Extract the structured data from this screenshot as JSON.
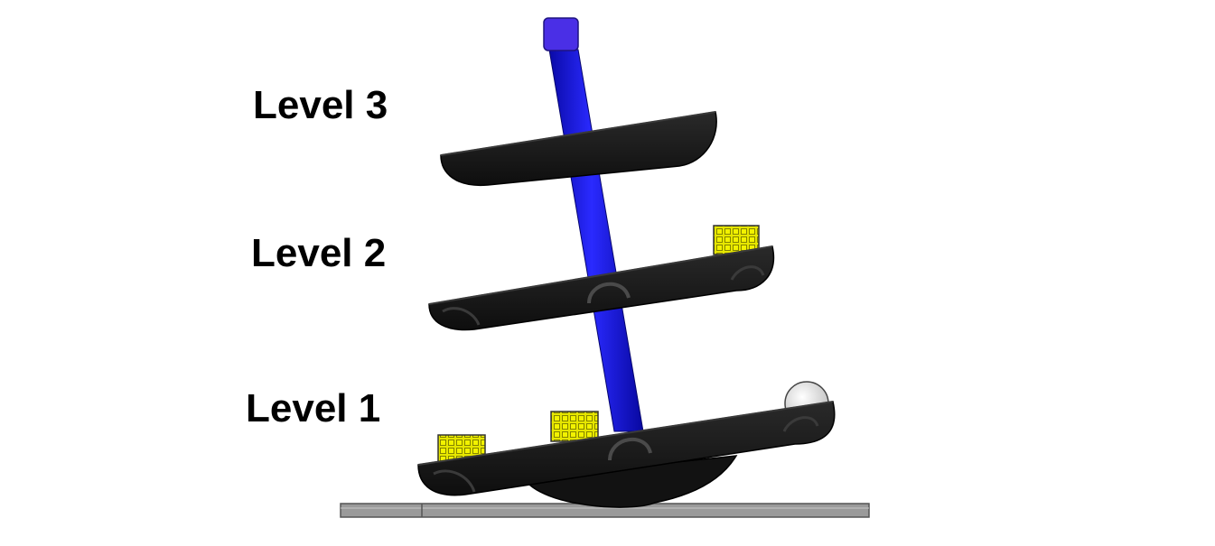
{
  "labels": {
    "level_3": "Level 3",
    "level_2": "Level 2",
    "level_1": "Level 1"
  },
  "colors": {
    "pole": "#1414d6",
    "pole_highlight": "#4b4bff",
    "pole_cap": "#4630e0",
    "tray": "#161616",
    "tray_rim": "#2e2e2e",
    "cube": "#e6e600",
    "ground": "#8c8c8c",
    "ball": "#e8e8e8"
  },
  "icons": {
    "pole": "central-pole",
    "tray": "curved-tray",
    "cube": "yellow-cube-block",
    "ball": "white-ball",
    "ground": "ground-plate"
  }
}
